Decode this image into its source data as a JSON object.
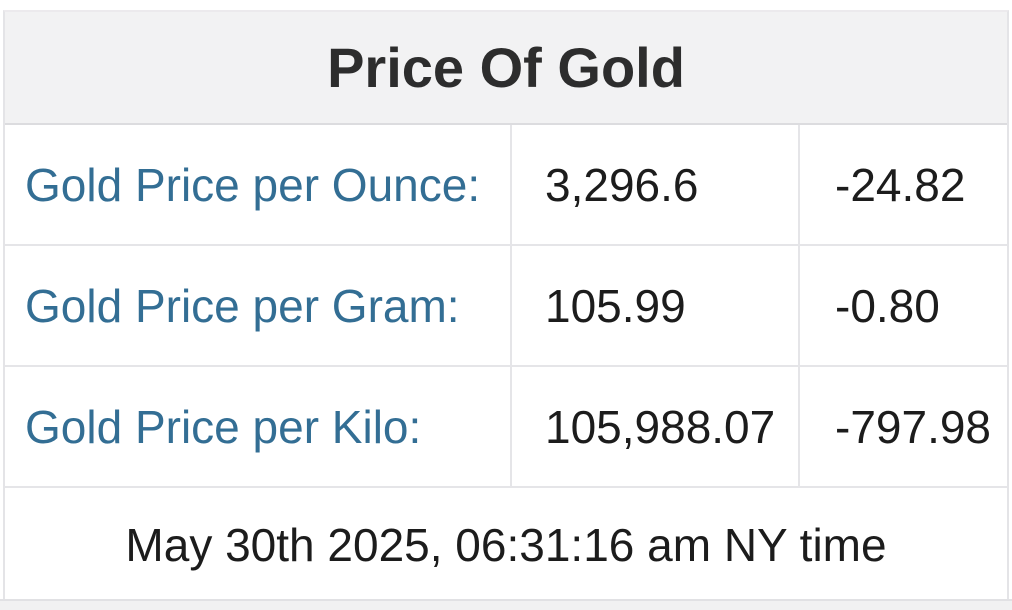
{
  "table": {
    "title": "Price Of Gold",
    "rows": [
      {
        "label": "Gold Price per Ounce:",
        "price": "3,296.6",
        "change": "-24.82"
      },
      {
        "label": "Gold Price per Gram:",
        "price": "105.99",
        "change": "-0.80"
      },
      {
        "label": "Gold Price per Kilo:",
        "price": "105,988.07",
        "change": "-797.98"
      }
    ],
    "timestamp": "May 30th 2025, 06:31:16 am NY time"
  },
  "colors": {
    "header_background": "#f2f2f3",
    "title_text": "#2d2d2d",
    "label_link": "#336e94",
    "value_text": "#1c1c1c",
    "cell_border": "#e5e5e8"
  }
}
